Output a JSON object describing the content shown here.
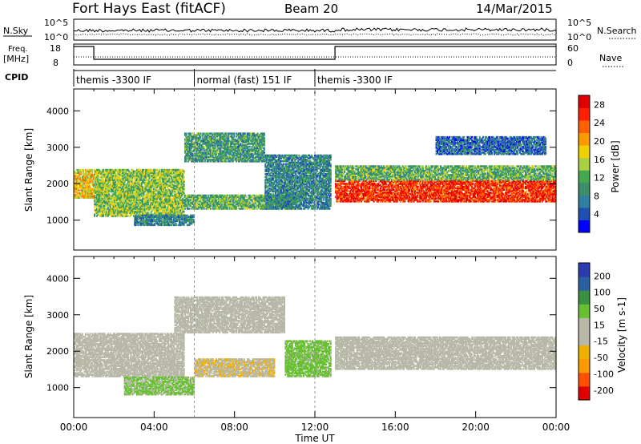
{
  "header": {
    "title": "Fort Hays East (fitACF)",
    "beam": "Beam 20",
    "date": "14/Mar/2015"
  },
  "noise_panel": {
    "left_label": "N.Sky",
    "left_ticks": [
      "10^5",
      "10^0"
    ],
    "right_ticks": [
      "10^5",
      "10^0"
    ],
    "right_label": "N.Search"
  },
  "freq_panel": {
    "left_label_1": "Freq.",
    "left_label_2": "[MHz]",
    "left_ticks": [
      "18",
      "8"
    ],
    "right_ticks": [
      "60",
      "0"
    ],
    "right_label": "Nave"
  },
  "cpid": {
    "label": "CPID",
    "segments": [
      {
        "start_hour": 0,
        "end_hour": 6,
        "name": "themis -3300 IF"
      },
      {
        "start_hour": 6,
        "end_hour": 12,
        "name": "normal (fast) 151 IF"
      },
      {
        "start_hour": 12,
        "end_hour": 24,
        "name": "themis -3300 IF"
      }
    ]
  },
  "x_axis": {
    "label": "Time UT",
    "ticks": [
      "00:00",
      "04:00",
      "08:00",
      "12:00",
      "16:00",
      "20:00",
      "00:00"
    ],
    "range_hours": [
      0,
      24
    ]
  },
  "colors": {
    "power_scale": [
      "#0000ff",
      "#1f4fb0",
      "#2e7fa0",
      "#3a8f6a",
      "#44a850",
      "#a8d040",
      "#f0d000",
      "#ff9900",
      "#ff6000",
      "#ff2000",
      "#e00000"
    ],
    "velocity_scale": [
      "#e00000",
      "#ff5000",
      "#ff9900",
      "#f0b000",
      "#b8b8a8",
      "#b8b8a8",
      "#66c030",
      "#3a9040",
      "#2b60a0",
      "#2a3cb0"
    ],
    "ground_scatter": "#b8b8a8"
  },
  "chart_data": [
    {
      "type": "heatmap",
      "name_role": "power",
      "ylabel": "Slant Range [km]",
      "yticks": [
        1000,
        2000,
        3000,
        4000
      ],
      "ylim": [
        180,
        4600
      ],
      "xlim": [
        0,
        24
      ],
      "colorbar": {
        "label": "Power [dB]",
        "ticks": [
          4,
          8,
          12,
          16,
          20,
          24,
          28
        ],
        "range": [
          0,
          30
        ]
      },
      "scatter_bands": [
        {
          "t0": 0.0,
          "t1": 1.0,
          "r0": 1600,
          "r1": 2400,
          "power": 18
        },
        {
          "t0": 1.0,
          "t1": 5.5,
          "r0": 1100,
          "r1": 2400,
          "power": 14
        },
        {
          "t0": 3.0,
          "t1": 6.0,
          "r0": 850,
          "r1": 1150,
          "power": 8
        },
        {
          "t0": 5.5,
          "t1": 11.0,
          "r0": 1300,
          "r1": 1700,
          "power": 12
        },
        {
          "t0": 5.5,
          "t1": 9.5,
          "r0": 2600,
          "r1": 3400,
          "power": 10
        },
        {
          "t0": 9.5,
          "t1": 12.8,
          "r0": 1300,
          "r1": 2800,
          "power": 8
        },
        {
          "t0": 13.0,
          "t1": 24.0,
          "r0": 1500,
          "r1": 2100,
          "power": 26
        },
        {
          "t0": 13.0,
          "t1": 24.0,
          "r0": 2100,
          "r1": 2500,
          "power": 12
        },
        {
          "t0": 18.0,
          "t1": 23.5,
          "r0": 2800,
          "r1": 3300,
          "power": 6
        }
      ]
    },
    {
      "type": "heatmap",
      "name_role": "velocity",
      "ylabel": "Slant Range [km]",
      "yticks": [
        1000,
        2000,
        3000,
        4000
      ],
      "ylim": [
        180,
        4600
      ],
      "xlim": [
        0,
        24
      ],
      "colorbar": {
        "label": "Velocity [m s-1]",
        "ticks": [
          200,
          100,
          50,
          15,
          -15,
          -50,
          -100,
          -200
        ],
        "range": [
          -250,
          250
        ]
      },
      "scatter_bands": [
        {
          "t0": 0.0,
          "t1": 5.5,
          "r0": 1300,
          "r1": 2500,
          "velocity": 0
        },
        {
          "t0": 2.5,
          "t1": 6.0,
          "r0": 800,
          "r1": 1300,
          "velocity": 60
        },
        {
          "t0": 6.0,
          "t1": 10.0,
          "r0": 1300,
          "r1": 1800,
          "velocity": -40
        },
        {
          "t0": 5.0,
          "t1": 10.5,
          "r0": 2500,
          "r1": 3500,
          "velocity": -20
        },
        {
          "t0": 10.5,
          "t1": 12.8,
          "r0": 1300,
          "r1": 2300,
          "velocity": 70
        },
        {
          "t0": 13.0,
          "t1": 24.0,
          "r0": 1500,
          "r1": 2400,
          "velocity": 0
        }
      ]
    }
  ]
}
